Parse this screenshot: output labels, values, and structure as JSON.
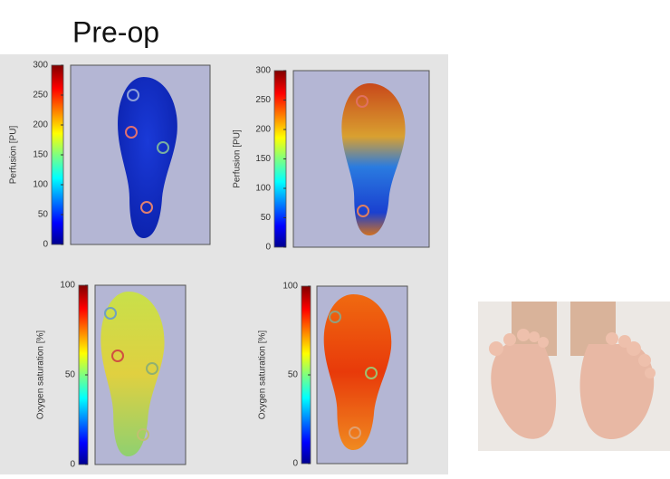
{
  "title": "Pre-op",
  "panels": [
    {
      "axis_label": "Perfusion [PU]",
      "ticks": [
        0,
        50,
        100,
        150,
        200,
        250,
        300
      ]
    },
    {
      "axis_label": "Perfusion [PU]",
      "ticks": [
        0,
        50,
        100,
        150,
        200,
        250,
        300
      ]
    },
    {
      "axis_label": "Oxygen saturation [%]",
      "ticks": [
        0,
        50,
        100
      ]
    },
    {
      "axis_label": "Oxygen saturation [%]",
      "ticks": [
        0,
        50,
        100
      ]
    }
  ]
}
